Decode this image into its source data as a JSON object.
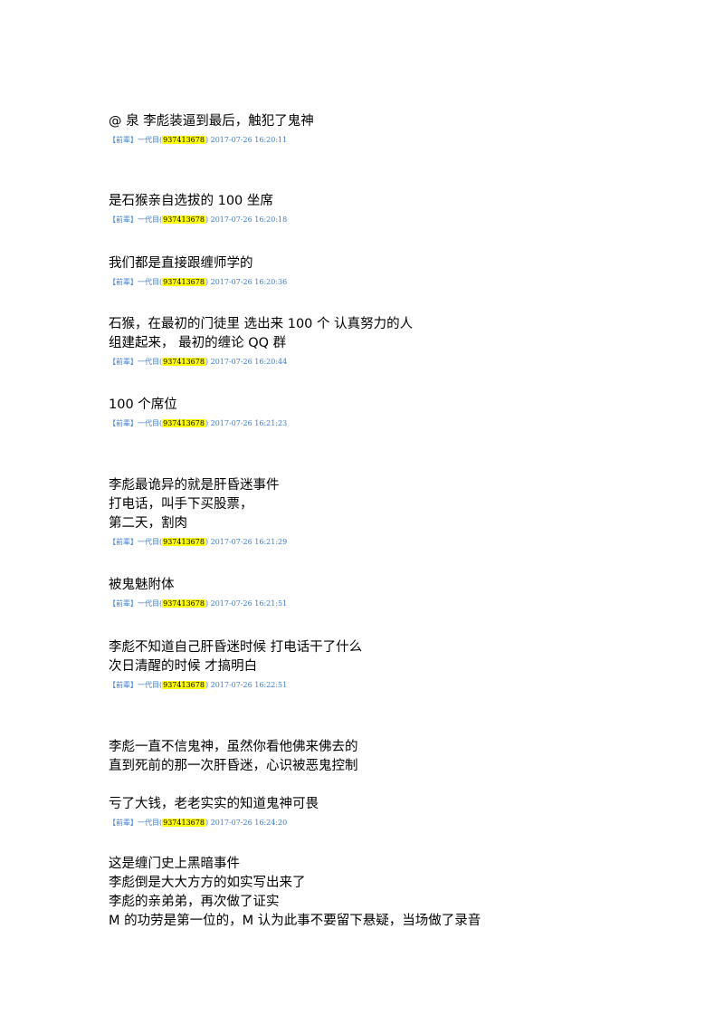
{
  "messages": [
    {
      "lines": [
        "@ 泉 李彪装逼到最后，触犯了鬼神"
      ],
      "meta": {
        "prefix": "【前辈】一代目(",
        "qq": "937413678",
        "suffix": ") 2017-07-26 16:20:11"
      }
    },
    {
      "lines": [
        "是石猴亲自选拔的 100 坐席"
      ],
      "meta": {
        "prefix": "【前辈】一代目(",
        "qq": "937413678",
        "suffix": ") 2017-07-26 16:20:18"
      }
    },
    {
      "lines": [
        "我们都是直接跟缠师学的"
      ],
      "meta": {
        "prefix": "【前辈】一代目(",
        "qq": "937413678",
        "suffix": ") 2017-07-26 16:20:36"
      }
    },
    {
      "lines": [
        "石猴，在最初的门徒里 选出来 100 个 认真努力的人",
        "组建起来， 最初的缠论 QQ 群"
      ],
      "meta": {
        "prefix": "【前辈】一代目(",
        "qq": "937413678",
        "suffix": ") 2017-07-26 16:20:44"
      }
    },
    {
      "lines": [
        "100 个席位"
      ],
      "meta": {
        "prefix": "【前辈】一代目(",
        "qq": "937413678",
        "suffix": ") 2017-07-26 16:21:23"
      }
    },
    {
      "lines": [
        "李彪最诡异的就是肝昏迷事件",
        "打电话，叫手下买股票，",
        "第二天，割肉"
      ],
      "meta": {
        "prefix": "【前辈】一代目(",
        "qq": "937413678",
        "suffix": ") 2017-07-26 16:21:29"
      }
    },
    {
      "lines": [
        "被鬼魅附体"
      ],
      "meta": {
        "prefix": "【前辈】一代目(",
        "qq": "937413678",
        "suffix": ") 2017-07-26 16:21:51"
      }
    },
    {
      "lines": [
        "李彪不知道自己肝昏迷时候 打电话干了什么",
        "次日清醒的时候 才搞明白"
      ],
      "meta": {
        "prefix": "【前辈】一代目(",
        "qq": "937413678",
        "suffix": ") 2017-07-26 16:22:51"
      }
    },
    {
      "lines": [
        "李彪一直不信鬼神，虽然你看他佛来佛去的",
        "直到死前的那一次肝昏迷，心识被恶鬼控制",
        "",
        "亏了大钱，老老实实的知道鬼神可畏"
      ],
      "meta": {
        "prefix": "【前辈】一代目(",
        "qq": "937413678",
        "suffix": ") 2017-07-26 16:24:20"
      }
    },
    {
      "lines": [
        "这是缠门史上黑暗事件",
        "李彪倒是大大方方的如实写出来了",
        "李彪的亲弟弟，再次做了证实",
        "M 的功劳是第一位的，M 认为此事不要留下悬疑，当场做了录音"
      ]
    }
  ]
}
